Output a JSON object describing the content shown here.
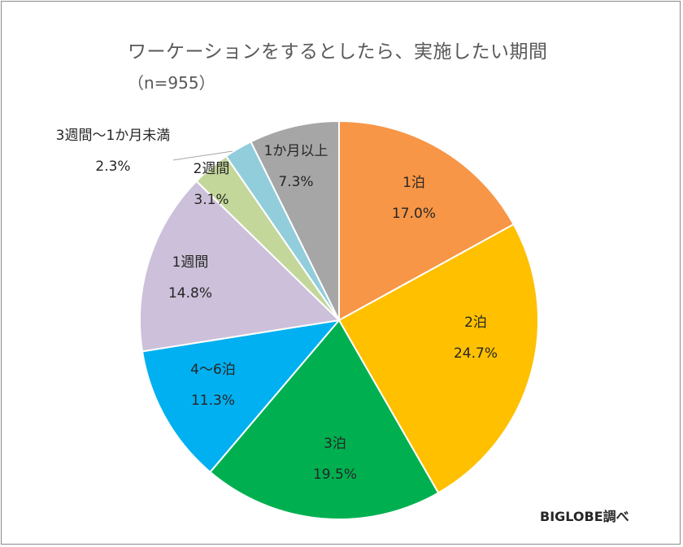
{
  "chart_data": {
    "type": "pie",
    "title": "ワーケーションをするとしたら、実施したい期間",
    "subtitle": "（n=955）",
    "credit": "BIGLOBE調べ",
    "slices": [
      {
        "label": "1泊",
        "value": 17.0,
        "value_label": "17.0%",
        "color": "#f79646"
      },
      {
        "label": "2泊",
        "value": 24.7,
        "value_label": "24.7%",
        "color": "#ffc000"
      },
      {
        "label": "3泊",
        "value": 19.5,
        "value_label": "19.5%",
        "color": "#00b050"
      },
      {
        "label": "4～6泊",
        "value": 11.3,
        "value_label": "11.3%",
        "color": "#00b0f0"
      },
      {
        "label": "1週間",
        "value": 14.8,
        "value_label": "14.8%",
        "color": "#ccc0da"
      },
      {
        "label": "2週間",
        "value": 3.1,
        "value_label": "3.1%",
        "color": "#c4d79b"
      },
      {
        "label": "3週間～1か月未満",
        "value": 2.3,
        "value_label": "2.3%",
        "color": "#92cddc"
      },
      {
        "label": "1か月以上",
        "value": 7.3,
        "value_label": "7.3%",
        "color": "#a6a6a6"
      }
    ]
  }
}
